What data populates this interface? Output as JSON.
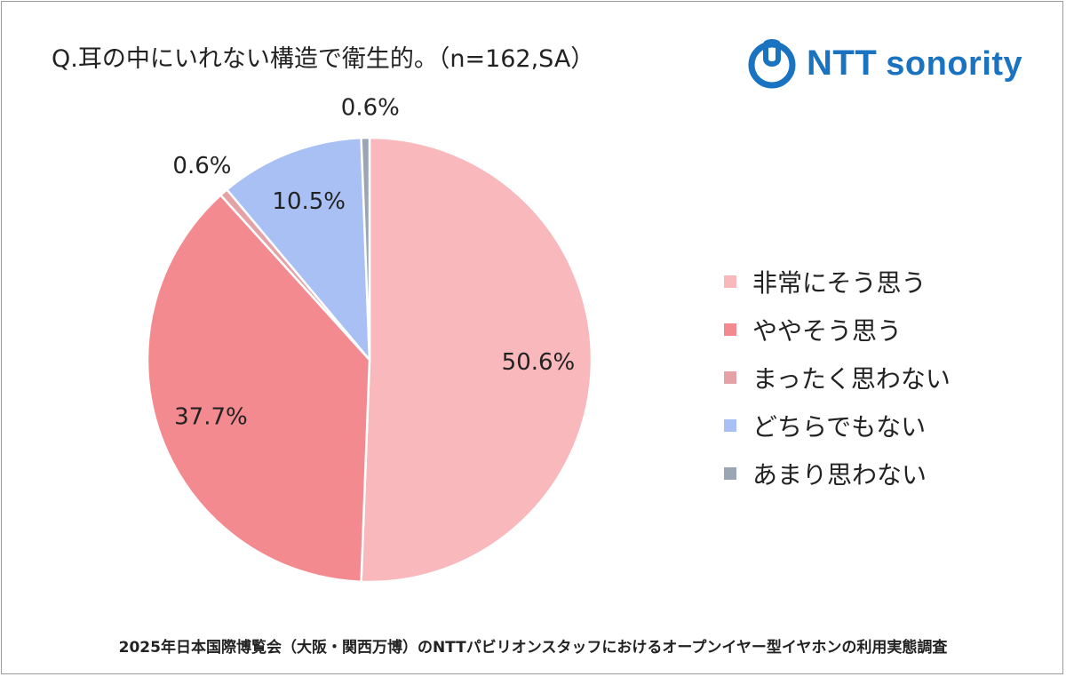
{
  "title": "Q.耳の中にいれない構造で衛生的。（n=162,SA）",
  "logo": {
    "brand": "NTT",
    "product": "sonority",
    "color": "#1a73c0"
  },
  "footer": "2025年日本国際博覧会（大阪・関西万博）のNTTパビリオンスタッフにおけるオープンイヤー型イヤホンの利用実態調査",
  "chart_data": {
    "type": "pie",
    "title": "Q.耳の中にいれない構造で衛生的。（n=162,SA）",
    "start": "top",
    "direction": "clockwise",
    "legend_position": "right",
    "slices": [
      {
        "label": "非常にそう思う",
        "value": 50.6,
        "display": "50.6%",
        "color": "#f8b8bc",
        "label_pos": "inside"
      },
      {
        "label": "ややそう思う",
        "value": 37.7,
        "display": "37.7%",
        "color": "#f38a90",
        "label_pos": "inside"
      },
      {
        "label": "まったく思わない",
        "value": 0.6,
        "display": "0.6%",
        "color": "#e4a2a6",
        "label_pos": "outside"
      },
      {
        "label": "どちらでもない",
        "value": 10.5,
        "display": "10.5%",
        "color": "#a9c0f4",
        "label_pos": "inside"
      },
      {
        "label": "あまり思わない",
        "value": 0.6,
        "display": "0.6%",
        "color": "#9aa6b4",
        "label_pos": "outside"
      }
    ]
  }
}
